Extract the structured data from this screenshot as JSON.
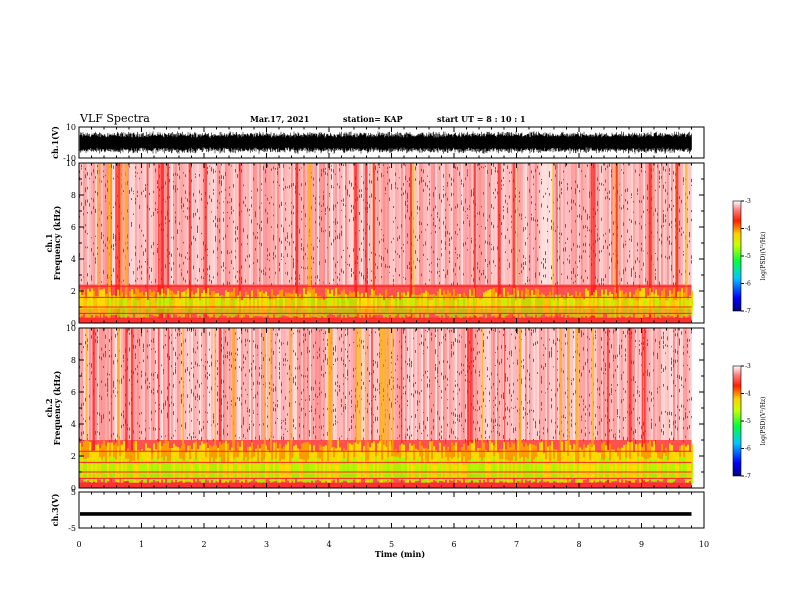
{
  "header": {
    "title": "VLF Spectra",
    "date": "Mar.17, 2021",
    "station": "station= KAP",
    "start": "start  UT  =   8  : 10 : 1"
  },
  "chart_data": [
    {
      "type": "line",
      "panel": "ch1-waveform",
      "ylabel": "ch.1(V)",
      "ylim": [
        -10,
        10
      ],
      "yticks": [
        "10",
        "-10"
      ],
      "xlim": [
        0,
        10
      ],
      "description_values": "noisy waveform, amplitude roughly -7 to +7 V"
    },
    {
      "type": "heatmap",
      "panel": "ch1-spectrogram",
      "ylabel": "ch.1 Frequency (kHz)",
      "ylim": [
        0,
        10
      ],
      "yticks": [
        "0",
        "2",
        "4",
        "6",
        "8",
        "10"
      ],
      "xlim": [
        0,
        9.8
      ],
      "colorbar": {
        "label": "log(PSD)(V²/Hz)",
        "ticks": [
          "-3",
          "-4",
          "-5",
          "-6",
          "-7"
        ],
        "range": [
          -7,
          -3
        ]
      }
    },
    {
      "type": "heatmap",
      "panel": "ch2-spectrogram",
      "ylabel": "ch.2 Frequency (kHz)",
      "ylim": [
        0,
        10
      ],
      "yticks": [
        "0",
        "2",
        "4",
        "6",
        "8",
        "10"
      ],
      "xlim": [
        0,
        9.8
      ],
      "colorbar": {
        "label": "log(PSD)(V²/Hz)",
        "ticks": [
          "-3",
          "-4",
          "-5",
          "-6",
          "-7"
        ],
        "range": [
          -7,
          -3
        ]
      }
    },
    {
      "type": "line",
      "panel": "ch3-waveform",
      "ylabel": "ch.3(V)",
      "ylim": [
        -5,
        5
      ],
      "yticks": [
        "5",
        "-5"
      ],
      "xlim": [
        0,
        10
      ],
      "description_values": "near-constant trace around -1 V"
    }
  ],
  "xaxis": {
    "label": "Time  (min)",
    "ticks": [
      "0",
      "1",
      "2",
      "3",
      "4",
      "5",
      "6",
      "7",
      "8",
      "9",
      "10"
    ]
  },
  "colors": {
    "spectrogram_low": "#ffffff",
    "spectrogram_mid": "#ff2a2a",
    "spectrogram_high": "#ffd700",
    "band": "#8cff00"
  }
}
